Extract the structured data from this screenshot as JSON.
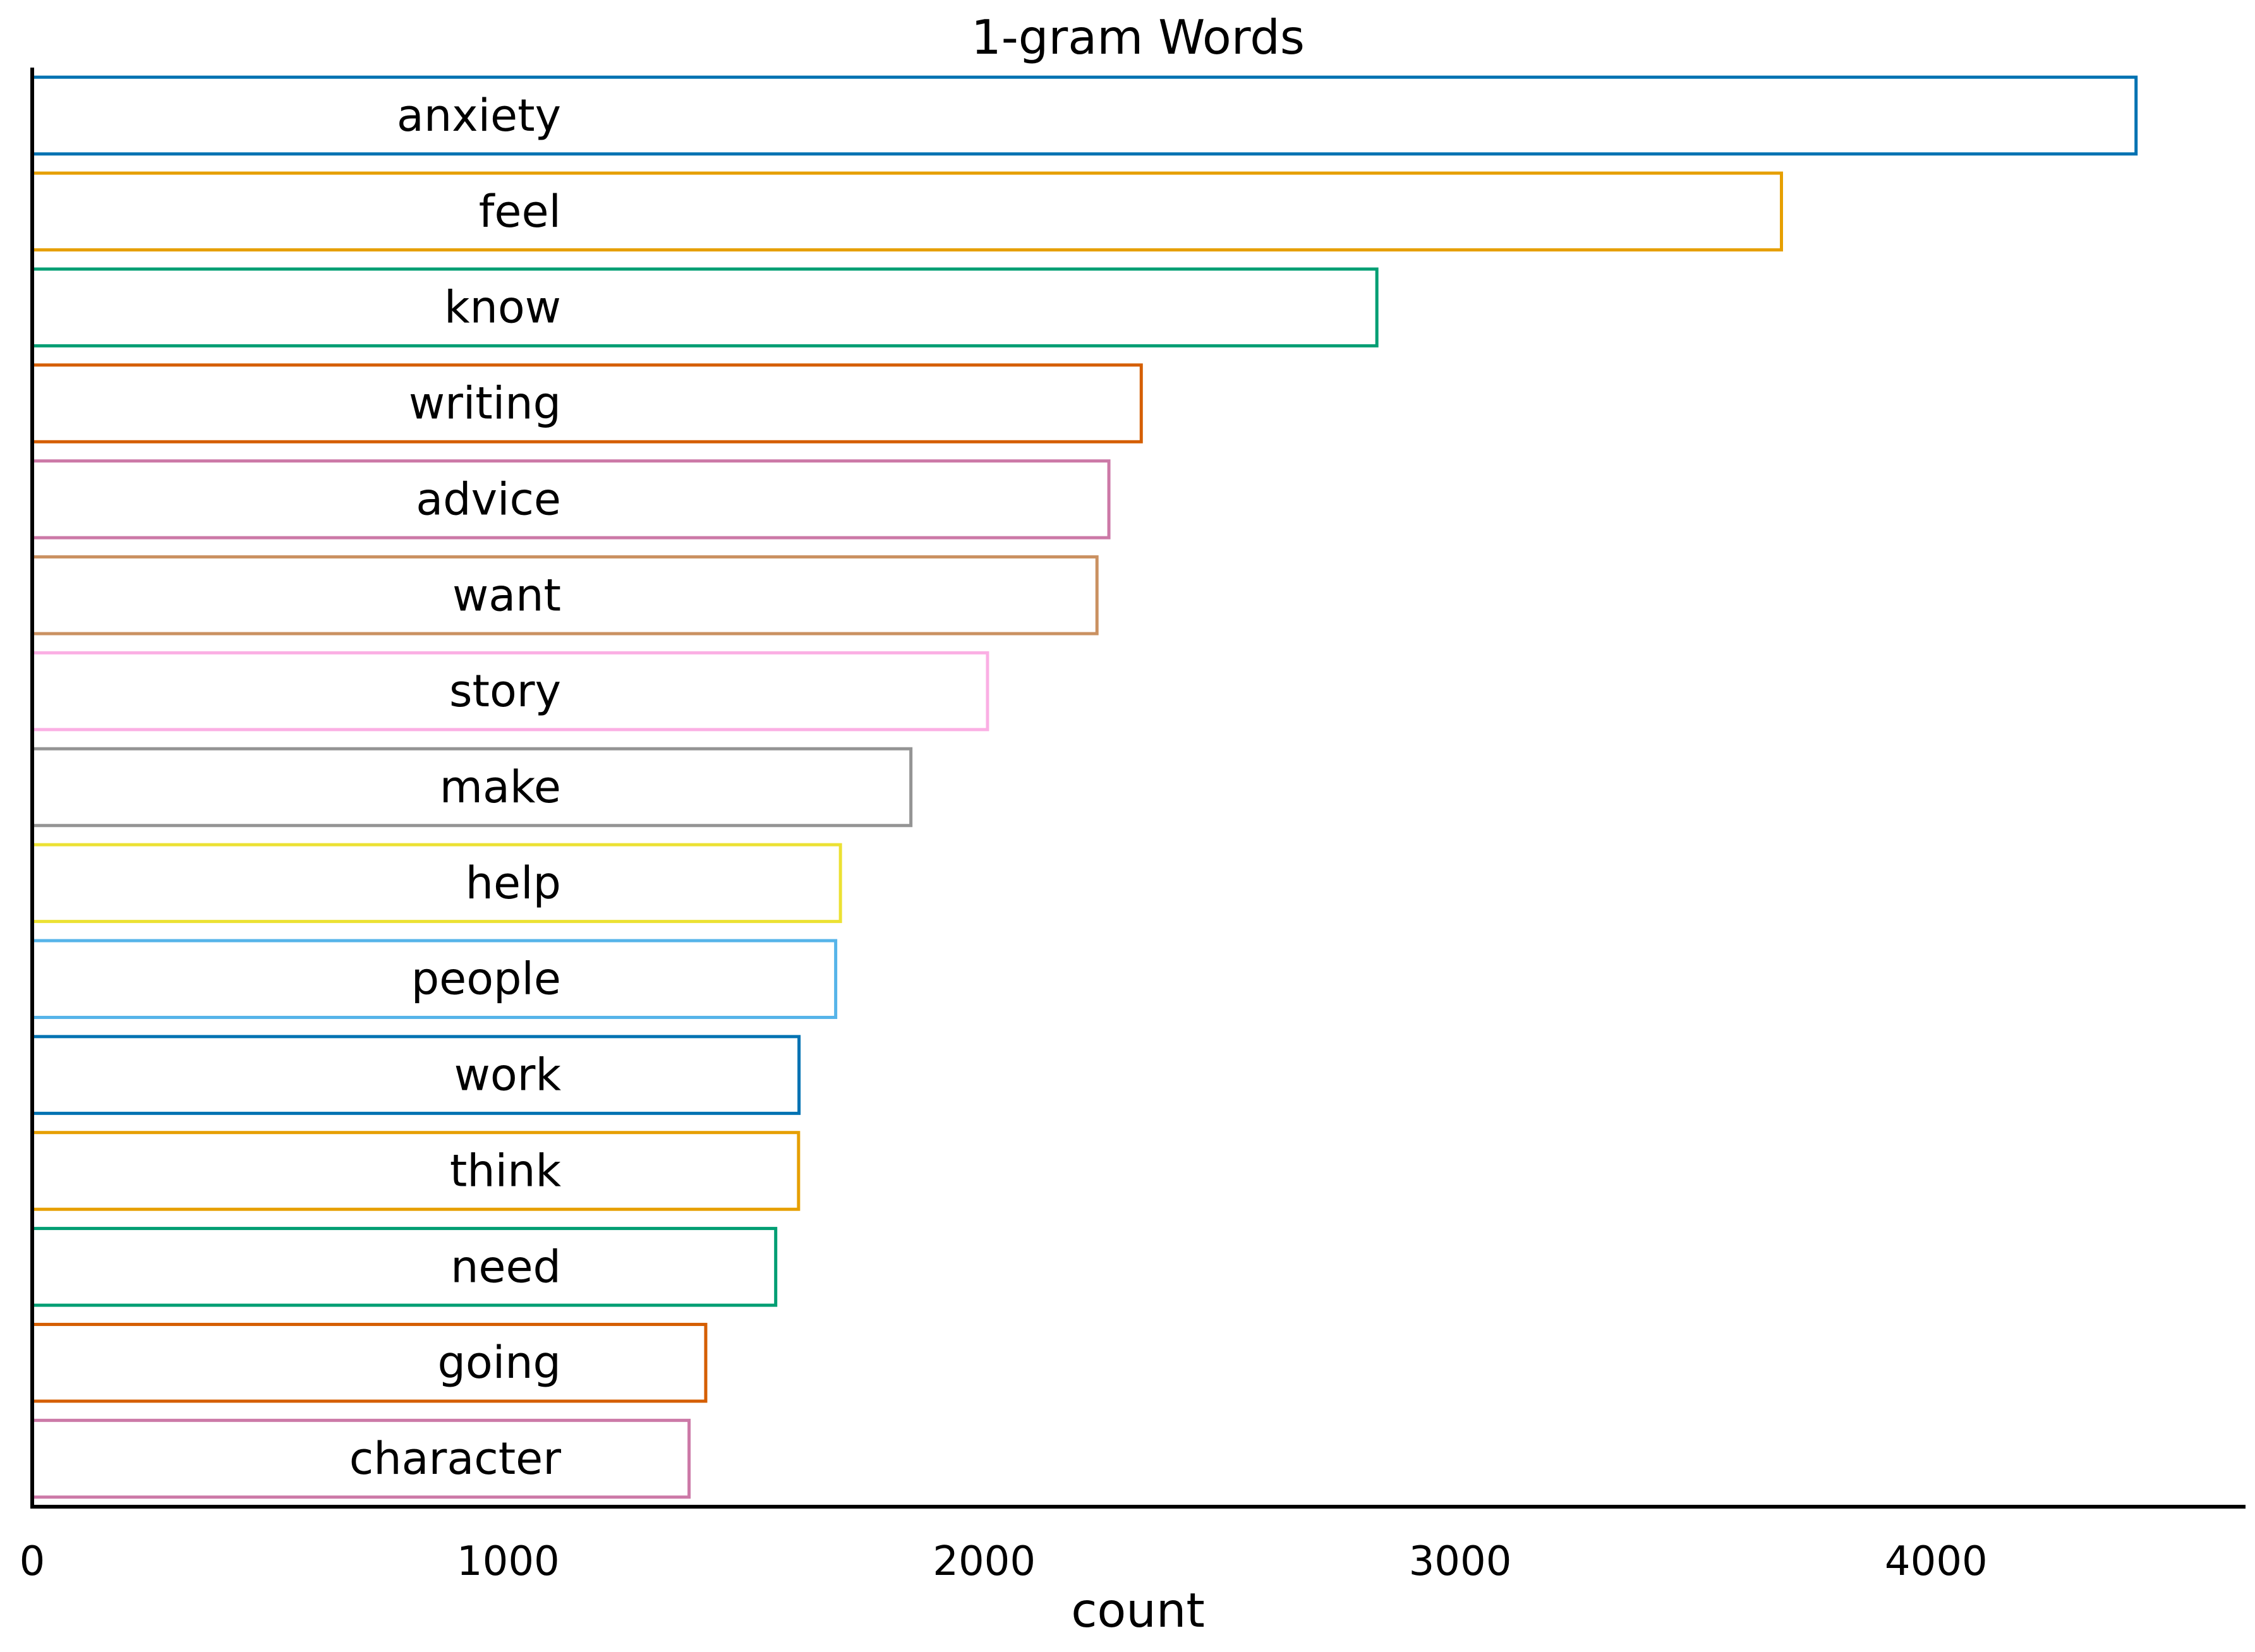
{
  "chart_data": {
    "type": "bar",
    "orientation": "horizontal",
    "title": "1-gram Words",
    "xlabel": "count",
    "ylabel": "",
    "xlim": [
      0,
      4650
    ],
    "xticks": [
      0,
      1000,
      2000,
      3000,
      4000
    ],
    "xtick_labels": [
      "0",
      "1000",
      "2000",
      "3000",
      "4000"
    ],
    "grid": false,
    "categories": [
      "anxiety",
      "feel",
      "know",
      "writing",
      "advice",
      "want",
      "story",
      "make",
      "help",
      "people",
      "work",
      "think",
      "need",
      "going",
      "character"
    ],
    "values": [
      4420,
      3675,
      2825,
      2330,
      2262,
      2237,
      2007,
      1846,
      1698,
      1688,
      1611,
      1610,
      1562,
      1415,
      1380
    ],
    "bar_style": "outline",
    "colors": [
      "#0072b2",
      "#e69f00",
      "#009e73",
      "#d55e00",
      "#cc79a7",
      "#ca9161",
      "#fbafe4",
      "#949494",
      "#ece133",
      "#56b4e9",
      "#0072b2",
      "#e69f00",
      "#009e73",
      "#d55e00",
      "#cc79a7"
    ]
  }
}
